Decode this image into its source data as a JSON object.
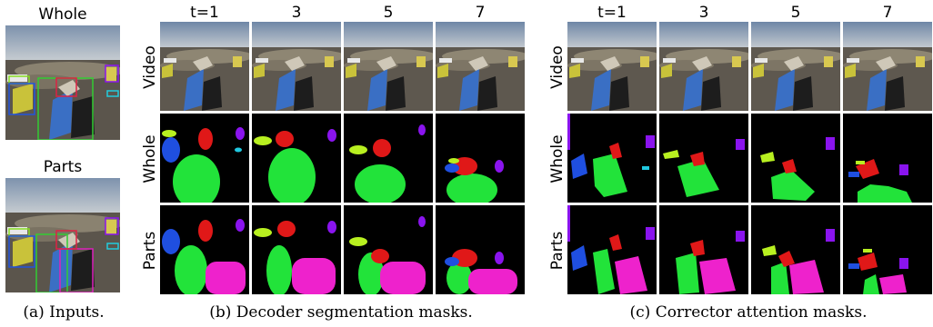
{
  "inputs": {
    "whole_title": "Whole",
    "parts_title": "Parts",
    "caption": "(a) Inputs."
  },
  "panel_b": {
    "col_titles": [
      "t=1",
      "3",
      "5",
      "7"
    ],
    "row_labels": [
      "Video",
      "Whole",
      "Parts"
    ],
    "caption": "(b) Decoder segmentation masks."
  },
  "panel_c": {
    "col_titles": [
      "t=1",
      "3",
      "5",
      "7"
    ],
    "row_labels": [
      "Video",
      "Whole",
      "Parts"
    ],
    "caption": "(c) Corrector attention masks."
  },
  "colors": {
    "mask_green": "#22e33a",
    "mask_red": "#e01818",
    "mask_magenta": "#ee22cc",
    "mask_blue": "#1f4fe0",
    "mask_purple": "#8a14ee",
    "mask_yellowgreen": "#b8f020",
    "mask_cyan": "#20c8e0",
    "box_green": "#33cc33",
    "box_red": "#dd2244",
    "box_magenta": "#dd22bb",
    "box_cyan": "#22ccdd"
  }
}
